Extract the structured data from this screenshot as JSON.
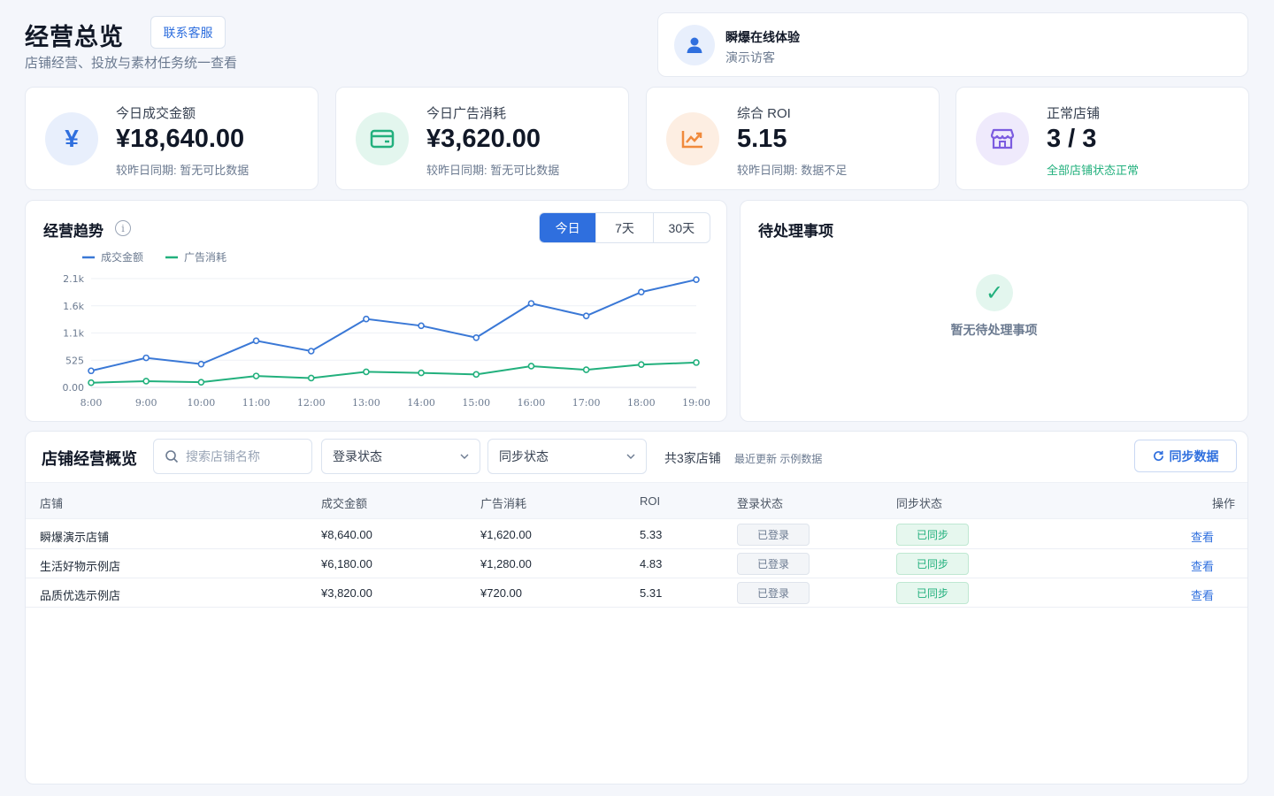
{
  "header": {
    "title": "经营总览",
    "contact_label": "联系客服",
    "subtitle": "店铺经营、投放与素材任务统一查看"
  },
  "user": {
    "name": "瞬爆在线体验",
    "role": "演示访客",
    "icon": "user-icon"
  },
  "kpis": [
    {
      "label": "今日成交金额",
      "value": "¥18,640.00",
      "note": "较昨日同期: 暂无可比数据",
      "icon": "yuan-icon",
      "color": "#2f6fde",
      "bg": "#e8effc"
    },
    {
      "label": "今日广告消耗",
      "value": "¥3,620.00",
      "note": "较昨日同期: 暂无可比数据",
      "icon": "wallet-icon",
      "color": "#22b07d",
      "bg": "#e3f6ee"
    },
    {
      "label": "综合 ROI",
      "value": "5.15",
      "note": "较昨日同期: 数据不足",
      "icon": "trend-icon",
      "color": "#f08a3c",
      "bg": "#fdeee2"
    },
    {
      "label": "正常店铺",
      "value": "3 / 3",
      "note": "全部店铺状态正常",
      "icon": "store-icon",
      "color": "#7c5ce0",
      "bg": "#efeafc"
    }
  ],
  "trend": {
    "title": "经营趋势",
    "info_icon": "info-icon",
    "tabs": [
      "今日",
      "7天",
      "30天"
    ],
    "active_tab": 0
  },
  "chart_data": {
    "type": "line",
    "x": [
      "8:00",
      "9:00",
      "10:00",
      "11:00",
      "12:00",
      "13:00",
      "14:00",
      "15:00",
      "16:00",
      "17:00",
      "18:00",
      "19:00"
    ],
    "series": [
      {
        "name": "成交金额",
        "color": "#3a78d6",
        "values": [
          320,
          570,
          450,
          900,
          700,
          1320,
          1190,
          960,
          1620,
          1380,
          1840,
          2080
        ]
      },
      {
        "name": "广告消耗",
        "color": "#22b07d",
        "values": [
          90,
          120,
          100,
          220,
          180,
          300,
          280,
          250,
          410,
          340,
          440,
          480
        ]
      }
    ],
    "y_ticks": [
      "0.00",
      "525",
      "1.1k",
      "1.6k",
      "2.1k"
    ],
    "ylim": [
      0,
      2100
    ],
    "legend": "top-left",
    "grid": true
  },
  "todo": {
    "title": "待处理事项",
    "empty_text": "暂无待处理事项",
    "icon": "check-icon"
  },
  "table": {
    "title": "店铺经营概览",
    "search_placeholder": "搜索店铺名称",
    "filter_login": "登录状态",
    "filter_sync": "同步状态",
    "shop_count": "共3家店铺",
    "last_update": "最近更新 示例数据",
    "sync_label": "同步数据",
    "columns": [
      "店铺",
      "成交金额",
      "广告消耗",
      "ROI",
      "登录状态",
      "同步状态",
      "操作"
    ],
    "rows": [
      {
        "shop": "瞬爆演示店铺",
        "gmv": "¥8,640.00",
        "ad": "¥1,620.00",
        "roi": "5.33",
        "login": "已登录",
        "sync": "已同步",
        "action": "查看"
      },
      {
        "shop": "生活好物示例店",
        "gmv": "¥6,180.00",
        "ad": "¥1,280.00",
        "roi": "4.83",
        "login": "已登录",
        "sync": "已同步",
        "action": "查看"
      },
      {
        "shop": "品质优选示例店",
        "gmv": "¥3,820.00",
        "ad": "¥720.00",
        "roi": "5.31",
        "login": "已登录",
        "sync": "已同步",
        "action": "查看"
      }
    ]
  }
}
